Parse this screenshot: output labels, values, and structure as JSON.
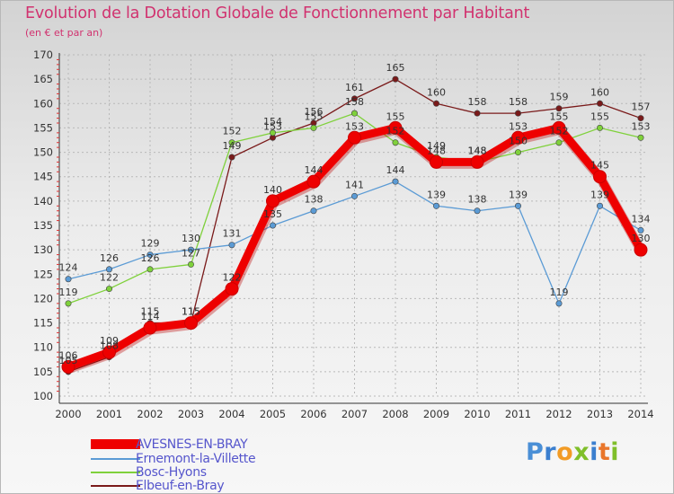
{
  "chart_data": {
    "type": "line",
    "title": "Evolution de la Dotation Globale de Fonctionnement par Habitant",
    "subtitle": "(en € et par an)",
    "xlabel": "",
    "ylabel": "",
    "ylim": [
      100,
      170
    ],
    "yticks": [
      100,
      105,
      110,
      115,
      120,
      125,
      130,
      135,
      140,
      145,
      150,
      155,
      160,
      165,
      170
    ],
    "categories": [
      "2000",
      "2001",
      "2002",
      "2003",
      "2004",
      "2005",
      "2006",
      "2007",
      "2008",
      "2009",
      "2010",
      "2011",
      "2012",
      "2013",
      "2014"
    ],
    "series": [
      {
        "name": "Elbeuf-en-Bray",
        "color": "#7a1a1a",
        "values": [
          105,
          108,
          115,
          115,
          149,
          153,
          156,
          161,
          165,
          160,
          158,
          158,
          159,
          160,
          157
        ],
        "labels": [
          "105",
          "108",
          "115",
          "115",
          "149",
          "153",
          "156",
          "161",
          "165",
          "160",
          "158",
          "158",
          "159",
          "160",
          "157"
        ]
      },
      {
        "name": "Bosc-Hyons",
        "color": "#7fd13b",
        "values": [
          119,
          122,
          126,
          127,
          152,
          154,
          155,
          158,
          152,
          149,
          148,
          150,
          152,
          155,
          153
        ],
        "labels": [
          "119",
          "122",
          "126",
          "127",
          "152",
          "154",
          "155",
          "158",
          "152",
          "149",
          "148",
          "150",
          "152",
          "155",
          "153"
        ]
      },
      {
        "name": "Ernemont-la-Villette",
        "color": "#5b9bd5",
        "values": [
          124,
          126,
          129,
          130,
          131,
          135,
          138,
          141,
          144,
          139,
          138,
          139,
          119,
          139,
          134
        ],
        "labels": [
          "124",
          "126",
          "129",
          "130",
          "131",
          "135",
          "138",
          "141",
          "144",
          "139",
          "138",
          "139",
          "119",
          "139",
          "134"
        ]
      },
      {
        "name": "AVESNES-EN-BRAY",
        "color": "#ee0000",
        "values": [
          106,
          109,
          114,
          115,
          122,
          140,
          144,
          153,
          155,
          148,
          148,
          153,
          155,
          145,
          130
        ],
        "labels": [
          "106",
          "109",
          "114",
          "115",
          "122",
          "140",
          "144",
          "153",
          "155",
          "148",
          "148",
          "153",
          "155",
          "145",
          "130"
        ]
      }
    ],
    "legend": [
      "AVESNES-EN-BRAY",
      "Ernemont-la-Villette",
      "Bosc-Hyons",
      "Elbeuf-en-Bray"
    ],
    "legend_position": "bottom-left"
  },
  "brand": {
    "letters": [
      "P",
      "r",
      "o",
      "x",
      "i",
      "t",
      "i"
    ],
    "colors": [
      "#4a8fd6",
      "#3b7fcf",
      "#f29b25",
      "#7fbf2a",
      "#3b7fcf",
      "#e9762b",
      "#7fbf2a"
    ]
  }
}
